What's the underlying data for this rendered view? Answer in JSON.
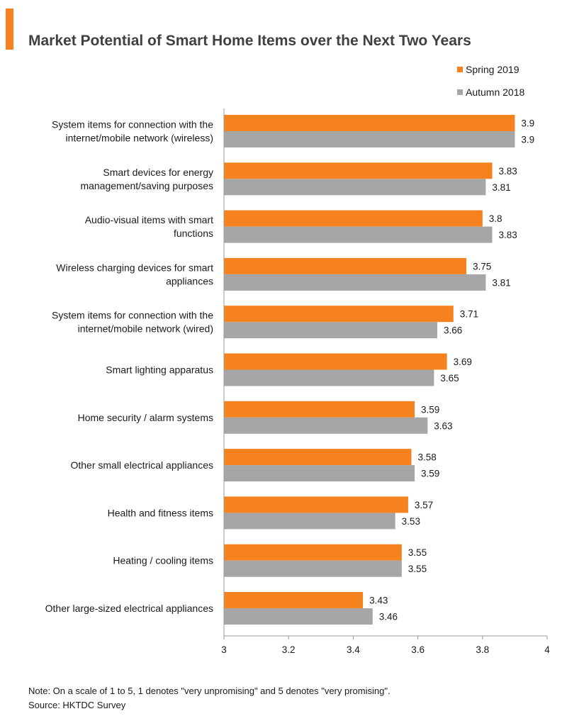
{
  "colors": {
    "accent": "#f5821f",
    "spring": "#f5821f",
    "autumn": "#a6a6a6"
  },
  "chart_data": {
    "type": "bar",
    "orientation": "horizontal",
    "title": "Market Potential of Smart Home Items over the Next Two Years",
    "categories": [
      [
        "System items for connection with the",
        "internet/mobile network (wireless)"
      ],
      [
        "Smart devices for energy",
        "management/saving purposes"
      ],
      [
        "Audio-visual items with smart",
        "functions"
      ],
      [
        "Wireless charging devices for smart",
        "appliances"
      ],
      [
        "System items for connection with the",
        "internet/mobile network (wired)"
      ],
      [
        "Smart lighting apparatus"
      ],
      [
        "Home security / alarm systems"
      ],
      [
        "Other small electrical appliances"
      ],
      [
        "Health and fitness items"
      ],
      [
        "Heating / cooling items"
      ],
      [
        "Other large-sized electrical appliances"
      ]
    ],
    "series": [
      {
        "name": "Spring 2019",
        "color": "#f5821f",
        "values": [
          3.9,
          3.83,
          3.8,
          3.75,
          3.71,
          3.69,
          3.59,
          3.58,
          3.57,
          3.55,
          3.43
        ],
        "labels": [
          "3.9",
          "3.83",
          "3.8",
          "3.75",
          "3.71",
          "3.69",
          "3.59",
          "3.58",
          "3.57",
          "3.55",
          "3.43"
        ]
      },
      {
        "name": "Autumn 2018",
        "color": "#a6a6a6",
        "values": [
          3.9,
          3.81,
          3.83,
          3.81,
          3.66,
          3.65,
          3.63,
          3.59,
          3.53,
          3.55,
          3.46
        ],
        "labels": [
          "3.9",
          "3.81",
          "3.83",
          "3.81",
          "3.66",
          "3.65",
          "3.63",
          "3.59",
          "3.53",
          "3.55",
          "3.46"
        ]
      }
    ],
    "xlim": [
      3,
      4
    ],
    "xticks": [
      3,
      3.2,
      3.4,
      3.6,
      3.8,
      4
    ],
    "xtick_labels": [
      "3",
      "3.2",
      "3.4",
      "3.6",
      "3.8",
      "4"
    ],
    "legend_position": "top-right",
    "grid": false
  },
  "footer": {
    "note": "Note: On a scale of 1 to 5, 1 denotes \"very unpromising\" and 5 denotes \"very promising\".",
    "source": "Source: HKTDC Survey"
  }
}
